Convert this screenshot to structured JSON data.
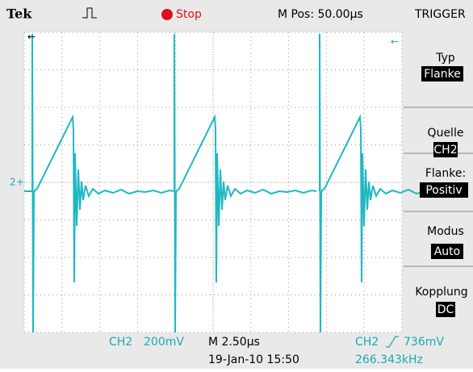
{
  "header": {
    "brand": "Tek",
    "status": "Stop",
    "position": "M Pos: 50.00µs",
    "menu_title": "TRIGGER"
  },
  "channel_marker": "2",
  "menu": [
    {
      "label": "Typ",
      "value": "Flanke"
    },
    {
      "label": "Quelle",
      "value": "CH2"
    },
    {
      "label": "Flanke:",
      "value": "Positiv"
    },
    {
      "label": "Modus",
      "value": "Auto"
    },
    {
      "label": "Kopplung",
      "value": "DC"
    }
  ],
  "footer": {
    "channel": "CH2",
    "volts": "200mV",
    "timebase": "M 2.50µs",
    "trigger_source": "CH2",
    "trigger_level": "736mV",
    "datetime": "19-Jan-10 15:50",
    "frequency": "266.343kHz"
  }
}
